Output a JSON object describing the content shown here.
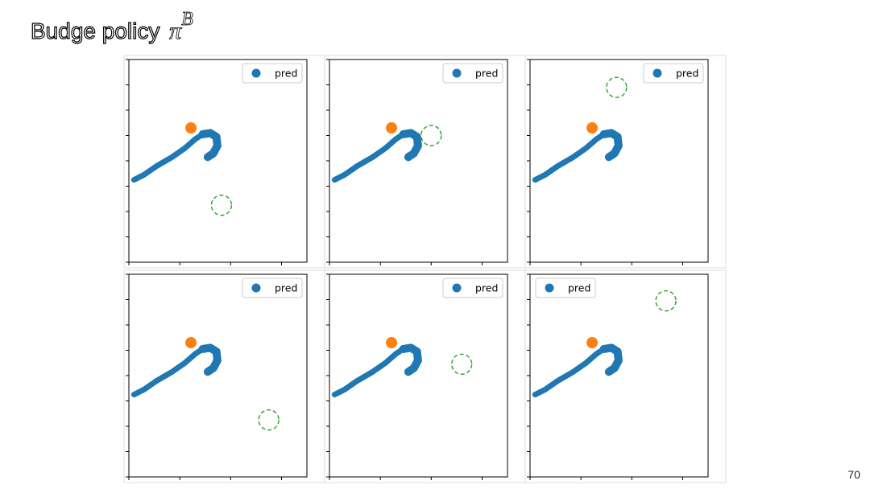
{
  "slide": {
    "title_text": "Budge policy",
    "title_symbol": "π",
    "title_superscript": "B",
    "page_number": "70"
  },
  "colors": {
    "pred": "#1f77b4",
    "current": "#ff7f0e",
    "target": "#2ca02c"
  },
  "chart_data": [
    {
      "type": "scatter",
      "legend": {
        "label": "pred",
        "location": "upper right"
      },
      "xlim": [
        0,
        3.5
      ],
      "ylim": [
        0,
        8
      ],
      "pred_path": [
        [
          0.1,
          3.25
        ],
        [
          0.3,
          3.45
        ],
        [
          0.55,
          3.8
        ],
        [
          0.85,
          4.15
        ],
        [
          1.1,
          4.5
        ],
        [
          1.3,
          4.85
        ],
        [
          1.45,
          5.05
        ],
        [
          1.6,
          5.1
        ],
        [
          1.72,
          4.95
        ],
        [
          1.74,
          4.6
        ],
        [
          1.66,
          4.3
        ],
        [
          1.55,
          4.15
        ]
      ],
      "current_point": [
        1.22,
        5.3
      ],
      "target_center": [
        1.82,
        2.25
      ],
      "grid": false
    },
    {
      "type": "scatter",
      "legend": {
        "label": "pred",
        "location": "upper right"
      },
      "xlim": [
        0,
        3.5
      ],
      "ylim": [
        0,
        8
      ],
      "pred_path": [
        [
          0.1,
          3.25
        ],
        [
          0.3,
          3.45
        ],
        [
          0.55,
          3.8
        ],
        [
          0.85,
          4.15
        ],
        [
          1.1,
          4.5
        ],
        [
          1.3,
          4.85
        ],
        [
          1.45,
          5.05
        ],
        [
          1.6,
          5.1
        ],
        [
          1.72,
          4.95
        ],
        [
          1.74,
          4.6
        ],
        [
          1.66,
          4.3
        ],
        [
          1.55,
          4.15
        ]
      ],
      "current_point": [
        1.22,
        5.3
      ],
      "target_center": [
        2.0,
        5.0
      ],
      "grid": false
    },
    {
      "type": "scatter",
      "legend": {
        "label": "pred",
        "location": "upper right"
      },
      "xlim": [
        0,
        3.5
      ],
      "ylim": [
        0,
        8
      ],
      "pred_path": [
        [
          0.1,
          3.25
        ],
        [
          0.3,
          3.45
        ],
        [
          0.55,
          3.8
        ],
        [
          0.85,
          4.15
        ],
        [
          1.1,
          4.5
        ],
        [
          1.3,
          4.85
        ],
        [
          1.45,
          5.05
        ],
        [
          1.6,
          5.1
        ],
        [
          1.72,
          4.95
        ],
        [
          1.74,
          4.6
        ],
        [
          1.66,
          4.3
        ],
        [
          1.55,
          4.15
        ]
      ],
      "current_point": [
        1.22,
        5.3
      ],
      "target_center": [
        1.7,
        6.9
      ],
      "grid": false
    },
    {
      "type": "scatter",
      "legend": {
        "label": "pred",
        "location": "upper right"
      },
      "xlim": [
        0,
        3.5
      ],
      "ylim": [
        0,
        8
      ],
      "pred_path": [
        [
          0.1,
          3.25
        ],
        [
          0.3,
          3.45
        ],
        [
          0.55,
          3.8
        ],
        [
          0.85,
          4.15
        ],
        [
          1.1,
          4.5
        ],
        [
          1.3,
          4.85
        ],
        [
          1.45,
          5.05
        ],
        [
          1.6,
          5.1
        ],
        [
          1.72,
          4.95
        ],
        [
          1.74,
          4.6
        ],
        [
          1.66,
          4.3
        ],
        [
          1.55,
          4.15
        ]
      ],
      "current_point": [
        1.22,
        5.3
      ],
      "target_center": [
        2.75,
        2.25
      ],
      "grid": false
    },
    {
      "type": "scatter",
      "legend": {
        "label": "pred",
        "location": "upper right"
      },
      "xlim": [
        0,
        3.5
      ],
      "ylim": [
        0,
        8
      ],
      "pred_path": [
        [
          0.1,
          3.25
        ],
        [
          0.3,
          3.45
        ],
        [
          0.55,
          3.8
        ],
        [
          0.85,
          4.15
        ],
        [
          1.1,
          4.5
        ],
        [
          1.3,
          4.85
        ],
        [
          1.45,
          5.05
        ],
        [
          1.6,
          5.1
        ],
        [
          1.72,
          4.95
        ],
        [
          1.74,
          4.6
        ],
        [
          1.66,
          4.3
        ],
        [
          1.55,
          4.15
        ]
      ],
      "current_point": [
        1.22,
        5.3
      ],
      "target_center": [
        2.6,
        4.45
      ],
      "grid": false
    },
    {
      "type": "scatter",
      "legend": {
        "label": "pred",
        "location": "upper left"
      },
      "xlim": [
        0,
        3.5
      ],
      "ylim": [
        0,
        8
      ],
      "pred_path": [
        [
          0.1,
          3.25
        ],
        [
          0.3,
          3.45
        ],
        [
          0.55,
          3.8
        ],
        [
          0.85,
          4.15
        ],
        [
          1.1,
          4.5
        ],
        [
          1.3,
          4.85
        ],
        [
          1.45,
          5.05
        ],
        [
          1.6,
          5.1
        ],
        [
          1.72,
          4.95
        ],
        [
          1.74,
          4.6
        ],
        [
          1.66,
          4.3
        ],
        [
          1.55,
          4.15
        ]
      ],
      "current_point": [
        1.22,
        5.3
      ],
      "target_center": [
        2.67,
        6.95
      ],
      "grid": false
    }
  ]
}
